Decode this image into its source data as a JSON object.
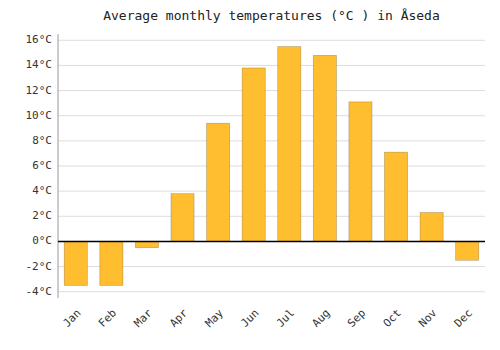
{
  "chart_data": {
    "type": "bar",
    "title": "Average monthly temperatures (°C ) in Åseda",
    "categories": [
      "Jan",
      "Feb",
      "Mar",
      "Apr",
      "May",
      "Jun",
      "Jul",
      "Aug",
      "Sep",
      "Oct",
      "Nov",
      "Dec"
    ],
    "values": [
      -3.5,
      -3.5,
      -0.5,
      3.8,
      9.4,
      13.8,
      15.5,
      14.8,
      11.1,
      7.1,
      2.3,
      -1.5
    ],
    "color": "#FFBE30",
    "ylim": [
      -4.5,
      16.5
    ],
    "yticks": [
      {
        "value": -4,
        "label": "-4°C"
      },
      {
        "value": -2,
        "label": "-2°C"
      },
      {
        "value": 0,
        "label": "0°C"
      },
      {
        "value": 2,
        "label": "2°C"
      },
      {
        "value": 4,
        "label": "4°C"
      },
      {
        "value": 6,
        "label": "6°C"
      },
      {
        "value": 8,
        "label": "8°C"
      },
      {
        "value": 10,
        "label": "10°C"
      },
      {
        "value": 12,
        "label": "12°C"
      },
      {
        "value": 14,
        "label": "14°C"
      },
      {
        "value": 16,
        "label": "16°C"
      }
    ],
    "grid": true
  }
}
